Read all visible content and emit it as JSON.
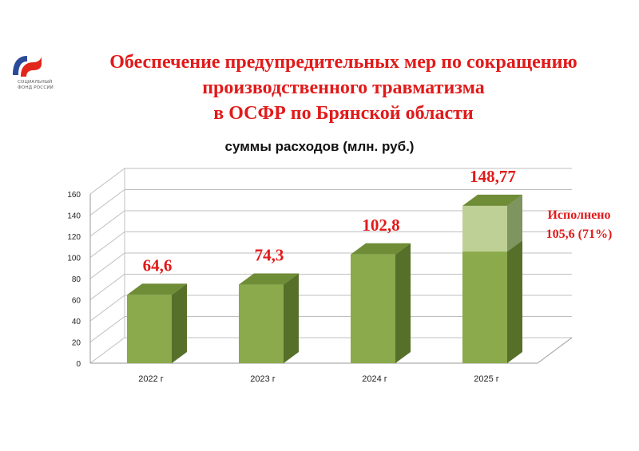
{
  "logo": {
    "icon_name": "sfr-logo-icon",
    "text_line1": "СОЦИАЛЬНЫЙ",
    "text_line2": "ФОНД РОССИИ",
    "colors": {
      "blue": "#2b4a9a",
      "red": "#e1261c"
    }
  },
  "header": {
    "title_line1": "Обеспечение предупредительных мер по сокращению",
    "title_line2": "производственного травматизма",
    "title_line3": "в ОСФР по Брянской области",
    "subtitle": "суммы расходов (млн. руб.)"
  },
  "chart_data": {
    "type": "bar",
    "style": "3d-column",
    "categories": [
      "2022 г",
      "2023 г",
      "2024 г",
      "2025 г"
    ],
    "series": [
      {
        "values": [
          64.6,
          74.3,
          102.8,
          105.6
        ]
      },
      {
        "values": [
          0,
          0,
          0,
          43.17
        ]
      }
    ],
    "data_labels": [
      "64,6",
      "74,3",
      "102,8",
      "148,77"
    ],
    "ylim": [
      0,
      160
    ],
    "yticks": [
      0,
      20,
      40,
      60,
      80,
      100,
      120,
      140,
      160
    ],
    "grid": true,
    "legend": "none",
    "annotation": {
      "line1": "Исполнено",
      "line2": "105,6 (71%)"
    },
    "colors": {
      "bar_front": "#8aaa4b",
      "bar_top": "#6f8c36",
      "bar_side": "#56702a",
      "planned_front": "#bed095",
      "planned_top": "#6f8c36",
      "planned_side": "#7e9560",
      "label": "#e11a1a"
    }
  }
}
